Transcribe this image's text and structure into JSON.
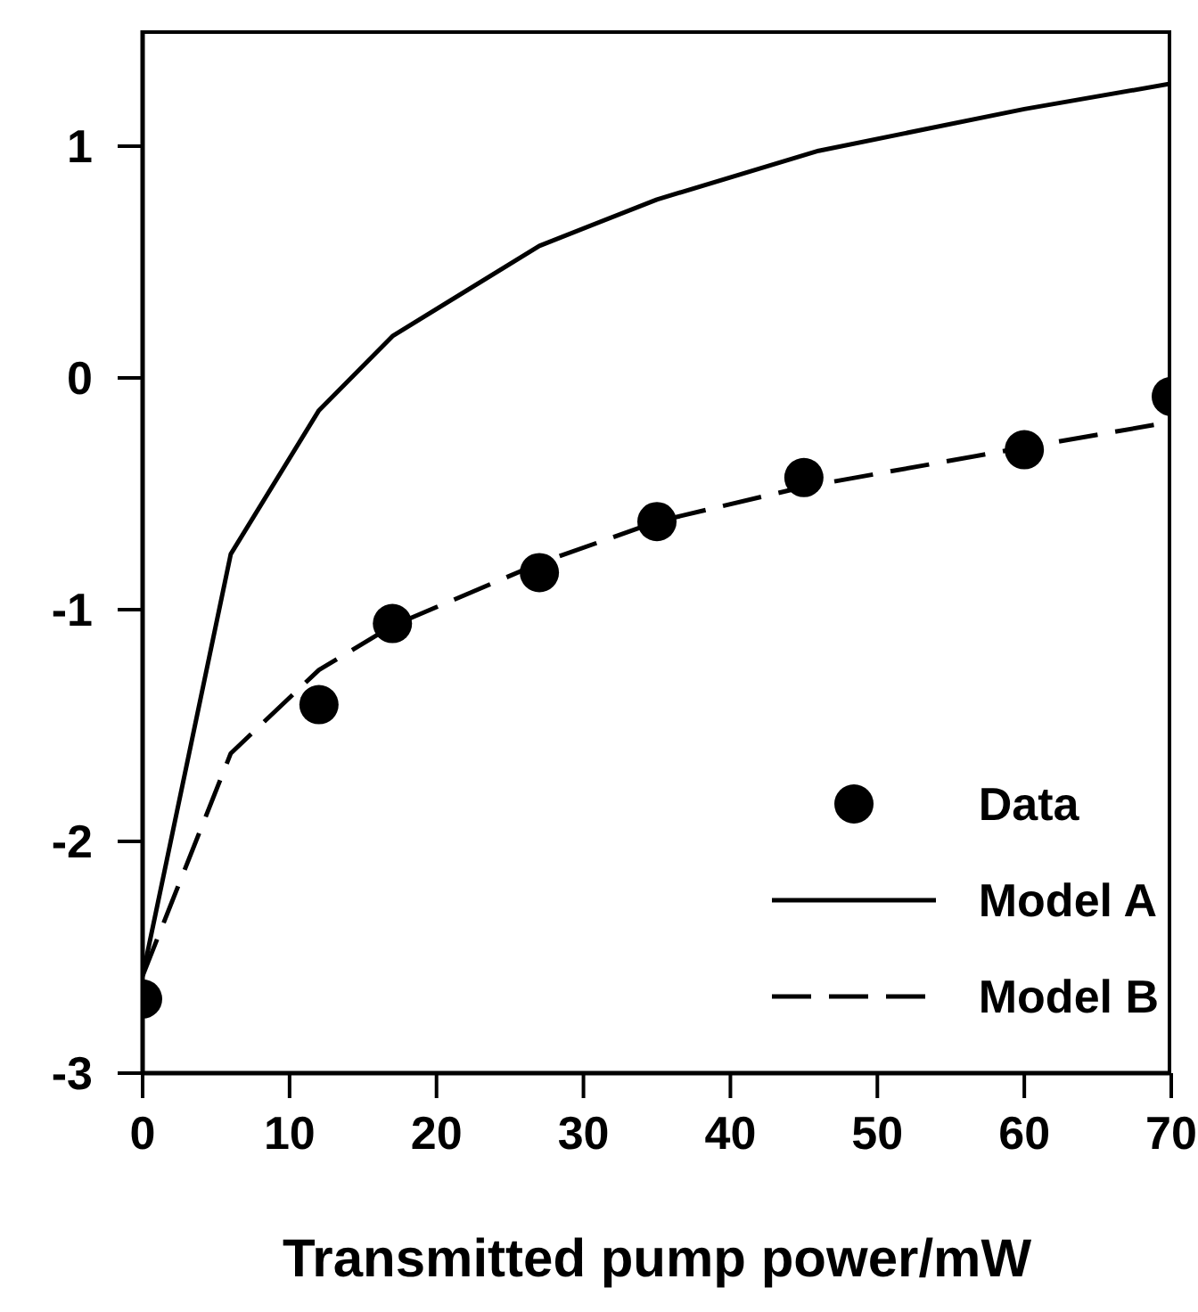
{
  "chart_data": {
    "type": "line",
    "xlabel": "Transmitted pump power/mW",
    "xlim": [
      0,
      70
    ],
    "xticks": [
      0,
      10,
      20,
      30,
      40,
      50,
      60,
      70
    ],
    "ylim": [
      -3,
      1.5
    ],
    "yticks": [
      -3,
      -2,
      -1,
      0,
      1
    ],
    "grid": false,
    "legend": "bottom right",
    "series": [
      {
        "name": "Data",
        "type": "scatter",
        "color": "#000000",
        "marker": "circle",
        "x": [
          0,
          12,
          17,
          27,
          35,
          45,
          60,
          70
        ],
        "values": [
          -2.68,
          -1.41,
          -1.06,
          -0.84,
          -0.62,
          -0.43,
          -0.31,
          -0.08
        ]
      },
      {
        "name": "Model A",
        "color": "#000000",
        "marker": "none",
        "line_style": "solid",
        "x": [
          0,
          6,
          12,
          17,
          27,
          35,
          46,
          60,
          70
        ],
        "values": [
          -2.58,
          -0.76,
          -0.14,
          0.18,
          0.57,
          0.77,
          0.98,
          1.16,
          1.27
        ]
      },
      {
        "name": "Model B",
        "color": "#000000",
        "marker": "none",
        "line_style": "dashed",
        "x": [
          0,
          6,
          12,
          17,
          27,
          35,
          45,
          60,
          70
        ],
        "values": [
          -2.58,
          -1.62,
          -1.26,
          -1.07,
          -0.8,
          -0.62,
          -0.47,
          -0.3,
          -0.19
        ]
      }
    ]
  }
}
